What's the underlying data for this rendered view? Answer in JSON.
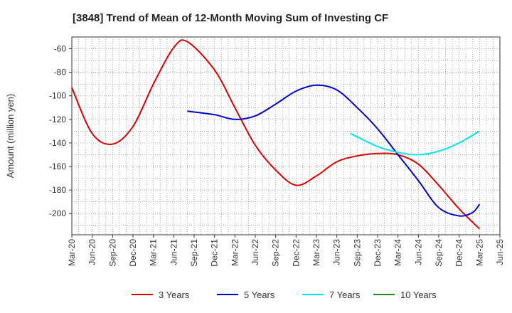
{
  "chart_data": {
    "type": "line",
    "title": "[3848]  Trend of Mean of 12-Month Moving Sum of Investing CF",
    "xlabel": "",
    "ylabel": "Amount (million yen)",
    "ylim": [
      -218,
      -50
    ],
    "yticks": [
      -60,
      -80,
      -100,
      -120,
      -140,
      -160,
      -180,
      -200
    ],
    "ytick_labels": [
      "-60",
      "-80",
      "-100",
      "-120",
      "-140",
      "-160",
      "-180",
      "-200"
    ],
    "x_start": "Mar-20",
    "x_end": "Jun-25",
    "xtick_labels": [
      "Mar-20",
      "Jun-20",
      "Sep-20",
      "Dec-20",
      "Mar-21",
      "Jun-21",
      "Sep-21",
      "Dec-21",
      "Mar-22",
      "Jun-22",
      "Sep-22",
      "Dec-22",
      "Mar-23",
      "Jun-23",
      "Sep-23",
      "Dec-23",
      "Mar-24",
      "Jun-24",
      "Sep-24",
      "Dec-24",
      "Mar-25",
      "Jun-25"
    ],
    "grid": true,
    "legend_position": "bottom",
    "series": [
      {
        "name": "3 Years",
        "color": "#dd0000",
        "points": [
          [
            "Mar-20",
            -93
          ],
          [
            "Jun-20",
            -132
          ],
          [
            "Sep-20",
            -141
          ],
          [
            "Dec-20",
            -126
          ],
          [
            "Mar-21",
            -90
          ],
          [
            "Jun-21",
            -59
          ],
          [
            "Aug-21",
            -54
          ],
          [
            "Dec-21",
            -78
          ],
          [
            "Mar-22",
            -110
          ],
          [
            "Jun-22",
            -142
          ],
          [
            "Sep-22",
            -163
          ],
          [
            "Dec-22",
            -176
          ],
          [
            "Mar-23",
            -168
          ],
          [
            "Jun-23",
            -156
          ],
          [
            "Sep-23",
            -151
          ],
          [
            "Dec-23",
            -149
          ],
          [
            "Mar-24",
            -150
          ],
          [
            "Jun-24",
            -158
          ],
          [
            "Sep-24",
            -176
          ],
          [
            "Dec-24",
            -196
          ],
          [
            "Mar-25",
            -213
          ]
        ]
      },
      {
        "name": "5 Years",
        "color": "#0000cc",
        "points": [
          [
            "Aug-21",
            -113
          ],
          [
            "Dec-21",
            -116
          ],
          [
            "Mar-22",
            -120
          ],
          [
            "Jun-22",
            -117
          ],
          [
            "Sep-22",
            -107
          ],
          [
            "Dec-22",
            -96
          ],
          [
            "Mar-23",
            -91
          ],
          [
            "Jun-23",
            -95
          ],
          [
            "Sep-23",
            -110
          ],
          [
            "Dec-23",
            -128
          ],
          [
            "Mar-24",
            -150
          ],
          [
            "Jun-24",
            -172
          ],
          [
            "Sep-24",
            -195
          ],
          [
            "Dec-24",
            -202
          ],
          [
            "Feb-25",
            -199
          ],
          [
            "Mar-25",
            -192
          ]
        ]
      },
      {
        "name": "7 Years",
        "color": "#00e5ee",
        "points": [
          [
            "Aug-23",
            -132
          ],
          [
            "Dec-23",
            -143
          ],
          [
            "Mar-24",
            -148
          ],
          [
            "Jun-24",
            -150
          ],
          [
            "Sep-24",
            -147
          ],
          [
            "Dec-24",
            -140
          ],
          [
            "Mar-25",
            -130
          ]
        ]
      },
      {
        "name": "10 Years",
        "color": "#228b22",
        "points": []
      }
    ]
  }
}
